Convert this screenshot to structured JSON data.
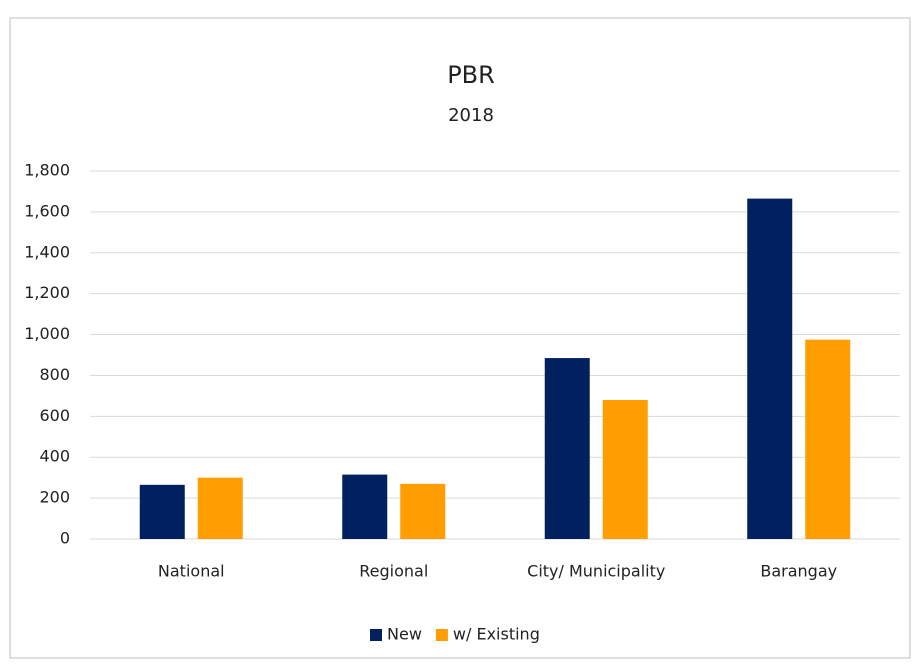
{
  "chart_data": {
    "type": "bar",
    "title": "PBR",
    "subtitle": "2018",
    "categories": [
      "National",
      "Regional",
      "City/ Municipality",
      "Barangay"
    ],
    "series": [
      {
        "name": "New",
        "color": "#002060",
        "values": [
          265,
          315,
          885,
          1665
        ]
      },
      {
        "name": "w/ Existing",
        "color": "#ff9e00",
        "values": [
          300,
          270,
          680,
          975
        ]
      }
    ],
    "ylim": [
      0,
      1800
    ],
    "yticks": [
      0,
      200,
      400,
      600,
      800,
      {
        "value": 1000,
        "label": "1,000"
      },
      {
        "value": 1200,
        "label": "1,200"
      },
      {
        "value": 1400,
        "label": "1,400"
      },
      {
        "value": 1600,
        "label": "1,600"
      },
      {
        "value": 1800,
        "label": "1,800"
      }
    ],
    "grid": true,
    "legend": "bottom"
  }
}
